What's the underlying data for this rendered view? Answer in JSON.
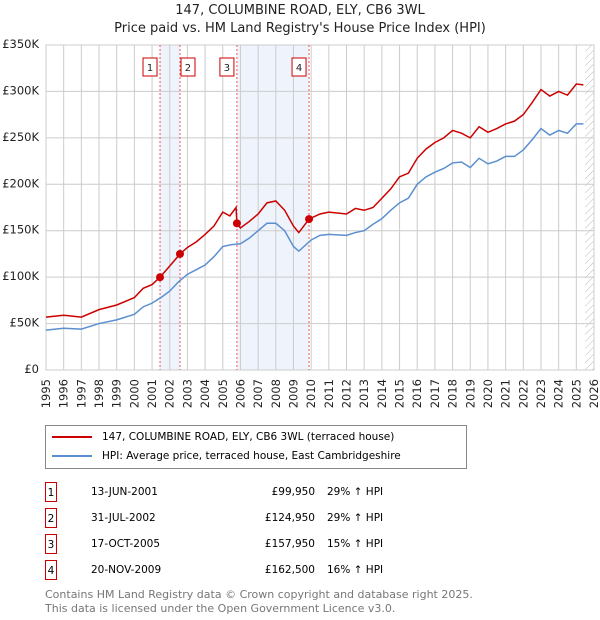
{
  "chart_data": {
    "type": "line",
    "title": "147, COLUMBINE ROAD, ELY, CB6 3WL",
    "subtitle": "Price paid vs. HM Land Registry's House Price Index (HPI)",
    "ylim": [
      0,
      350000
    ],
    "xlim": [
      1995,
      2026
    ],
    "yticks": [
      {
        "v": 0,
        "label": "£0"
      },
      {
        "v": 50000,
        "label": "£50K"
      },
      {
        "v": 100000,
        "label": "£100K"
      },
      {
        "v": 150000,
        "label": "£150K"
      },
      {
        "v": 200000,
        "label": "£200K"
      },
      {
        "v": 250000,
        "label": "£250K"
      },
      {
        "v": 300000,
        "label": "£300K"
      },
      {
        "v": 350000,
        "label": "£350K"
      }
    ],
    "xticks": [
      "1995",
      "1996",
      "1997",
      "1998",
      "1999",
      "2000",
      "2001",
      "2002",
      "2003",
      "2004",
      "2005",
      "2006",
      "2007",
      "2008",
      "2009",
      "2010",
      "2011",
      "2012",
      "2013",
      "2014",
      "2015",
      "2016",
      "2017",
      "2018",
      "2019",
      "2020",
      "2021",
      "2022",
      "2023",
      "2024",
      "2025",
      "2026"
    ],
    "grid": true,
    "series": [
      {
        "name": "147, COLUMBINE ROAD, ELY, CB6 3WL (terraced house)",
        "color": "#cc0000",
        "points": [
          [
            1995,
            57
          ],
          [
            1996,
            59
          ],
          [
            1997,
            57
          ],
          [
            1998,
            65
          ],
          [
            1999,
            70
          ],
          [
            2000,
            78
          ],
          [
            2000.5,
            88
          ],
          [
            2001,
            92
          ],
          [
            2001.45,
            99.95
          ],
          [
            2002,
            112
          ],
          [
            2002.58,
            124.95
          ],
          [
            2003,
            132
          ],
          [
            2003.5,
            138
          ],
          [
            2004,
            146
          ],
          [
            2004.5,
            155
          ],
          [
            2005,
            170
          ],
          [
            2005.4,
            166
          ],
          [
            2005.75,
            175
          ],
          [
            2005.8,
            157.95
          ],
          [
            2006,
            153
          ],
          [
            2006.5,
            160
          ],
          [
            2007,
            168
          ],
          [
            2007.5,
            180
          ],
          [
            2008,
            182
          ],
          [
            2008.5,
            172
          ],
          [
            2009,
            155
          ],
          [
            2009.3,
            148
          ],
          [
            2009.88,
            162.5
          ],
          [
            2010.5,
            168
          ],
          [
            2011,
            170
          ],
          [
            2012,
            168
          ],
          [
            2012.5,
            174
          ],
          [
            2013,
            172
          ],
          [
            2013.5,
            175
          ],
          [
            2014,
            185
          ],
          [
            2014.5,
            195
          ],
          [
            2015,
            208
          ],
          [
            2015.5,
            212
          ],
          [
            2016,
            228
          ],
          [
            2016.5,
            238
          ],
          [
            2017,
            245
          ],
          [
            2017.5,
            250
          ],
          [
            2018,
            258
          ],
          [
            2018.5,
            255
          ],
          [
            2019,
            250
          ],
          [
            2019.5,
            262
          ],
          [
            2020,
            256
          ],
          [
            2020.5,
            260
          ],
          [
            2021,
            265
          ],
          [
            2021.5,
            268
          ],
          [
            2022,
            275
          ],
          [
            2022.5,
            288
          ],
          [
            2023,
            302
          ],
          [
            2023.5,
            295
          ],
          [
            2024,
            300
          ],
          [
            2024.5,
            296
          ],
          [
            2025,
            308
          ],
          [
            2025.4,
            307
          ]
        ]
      },
      {
        "name": "HPI: Average price, terraced house, East Cambridgeshire",
        "color": "#5b8fd0",
        "points": [
          [
            1995,
            43
          ],
          [
            1996,
            45
          ],
          [
            1997,
            44
          ],
          [
            1998,
            50
          ],
          [
            1999,
            54
          ],
          [
            2000,
            60
          ],
          [
            2000.5,
            68
          ],
          [
            2001,
            72
          ],
          [
            2001.5,
            78
          ],
          [
            2002,
            85
          ],
          [
            2002.5,
            95
          ],
          [
            2003,
            103
          ],
          [
            2003.5,
            108
          ],
          [
            2004,
            113
          ],
          [
            2004.5,
            122
          ],
          [
            2005,
            133
          ],
          [
            2005.5,
            135
          ],
          [
            2006,
            136
          ],
          [
            2006.5,
            142
          ],
          [
            2007,
            150
          ],
          [
            2007.5,
            158
          ],
          [
            2008,
            158
          ],
          [
            2008.5,
            150
          ],
          [
            2009,
            133
          ],
          [
            2009.3,
            128
          ],
          [
            2010,
            140
          ],
          [
            2010.5,
            145
          ],
          [
            2011,
            146
          ],
          [
            2012,
            145
          ],
          [
            2012.5,
            148
          ],
          [
            2013,
            150
          ],
          [
            2013.5,
            157
          ],
          [
            2014,
            163
          ],
          [
            2014.5,
            172
          ],
          [
            2015,
            180
          ],
          [
            2015.5,
            185
          ],
          [
            2016,
            200
          ],
          [
            2016.5,
            208
          ],
          [
            2017,
            213
          ],
          [
            2017.5,
            217
          ],
          [
            2018,
            223
          ],
          [
            2018.5,
            224
          ],
          [
            2019,
            218
          ],
          [
            2019.5,
            228
          ],
          [
            2020,
            222
          ],
          [
            2020.5,
            225
          ],
          [
            2021,
            230
          ],
          [
            2021.5,
            230
          ],
          [
            2022,
            237
          ],
          [
            2022.5,
            248
          ],
          [
            2023,
            260
          ],
          [
            2023.5,
            253
          ],
          [
            2024,
            258
          ],
          [
            2024.5,
            255
          ],
          [
            2025,
            265
          ],
          [
            2025.4,
            265
          ]
        ]
      }
    ],
    "sales": [
      {
        "id": "1",
        "x": 2001.45,
        "y": 99.95,
        "date": "13-JUN-2001",
        "price": "£99,950",
        "hpi": "29% ↑ HPI"
      },
      {
        "id": "2",
        "x": 2002.58,
        "y": 124.95,
        "date": "31-JUL-2002",
        "price": "£124,950",
        "hpi": "29% ↑ HPI"
      },
      {
        "id": "3",
        "x": 2005.8,
        "y": 157.95,
        "date": "17-OCT-2005",
        "price": "£157,950",
        "hpi": "15% ↑ HPI"
      },
      {
        "id": "4",
        "x": 2009.88,
        "y": 162.5,
        "date": "20-NOV-2009",
        "price": "£162,500",
        "hpi": "16% ↑ HPI"
      }
    ],
    "shaded": [
      [
        2001.45,
        2002.58
      ],
      [
        2005.8,
        2009.88
      ]
    ],
    "forecast_from": 2025.5,
    "legend_placement": "below"
  },
  "footer": {
    "line1": "Contains HM Land Registry data © Crown copyright and database right 2025.",
    "line2": "This data is licensed under the Open Government Licence v3.0."
  }
}
